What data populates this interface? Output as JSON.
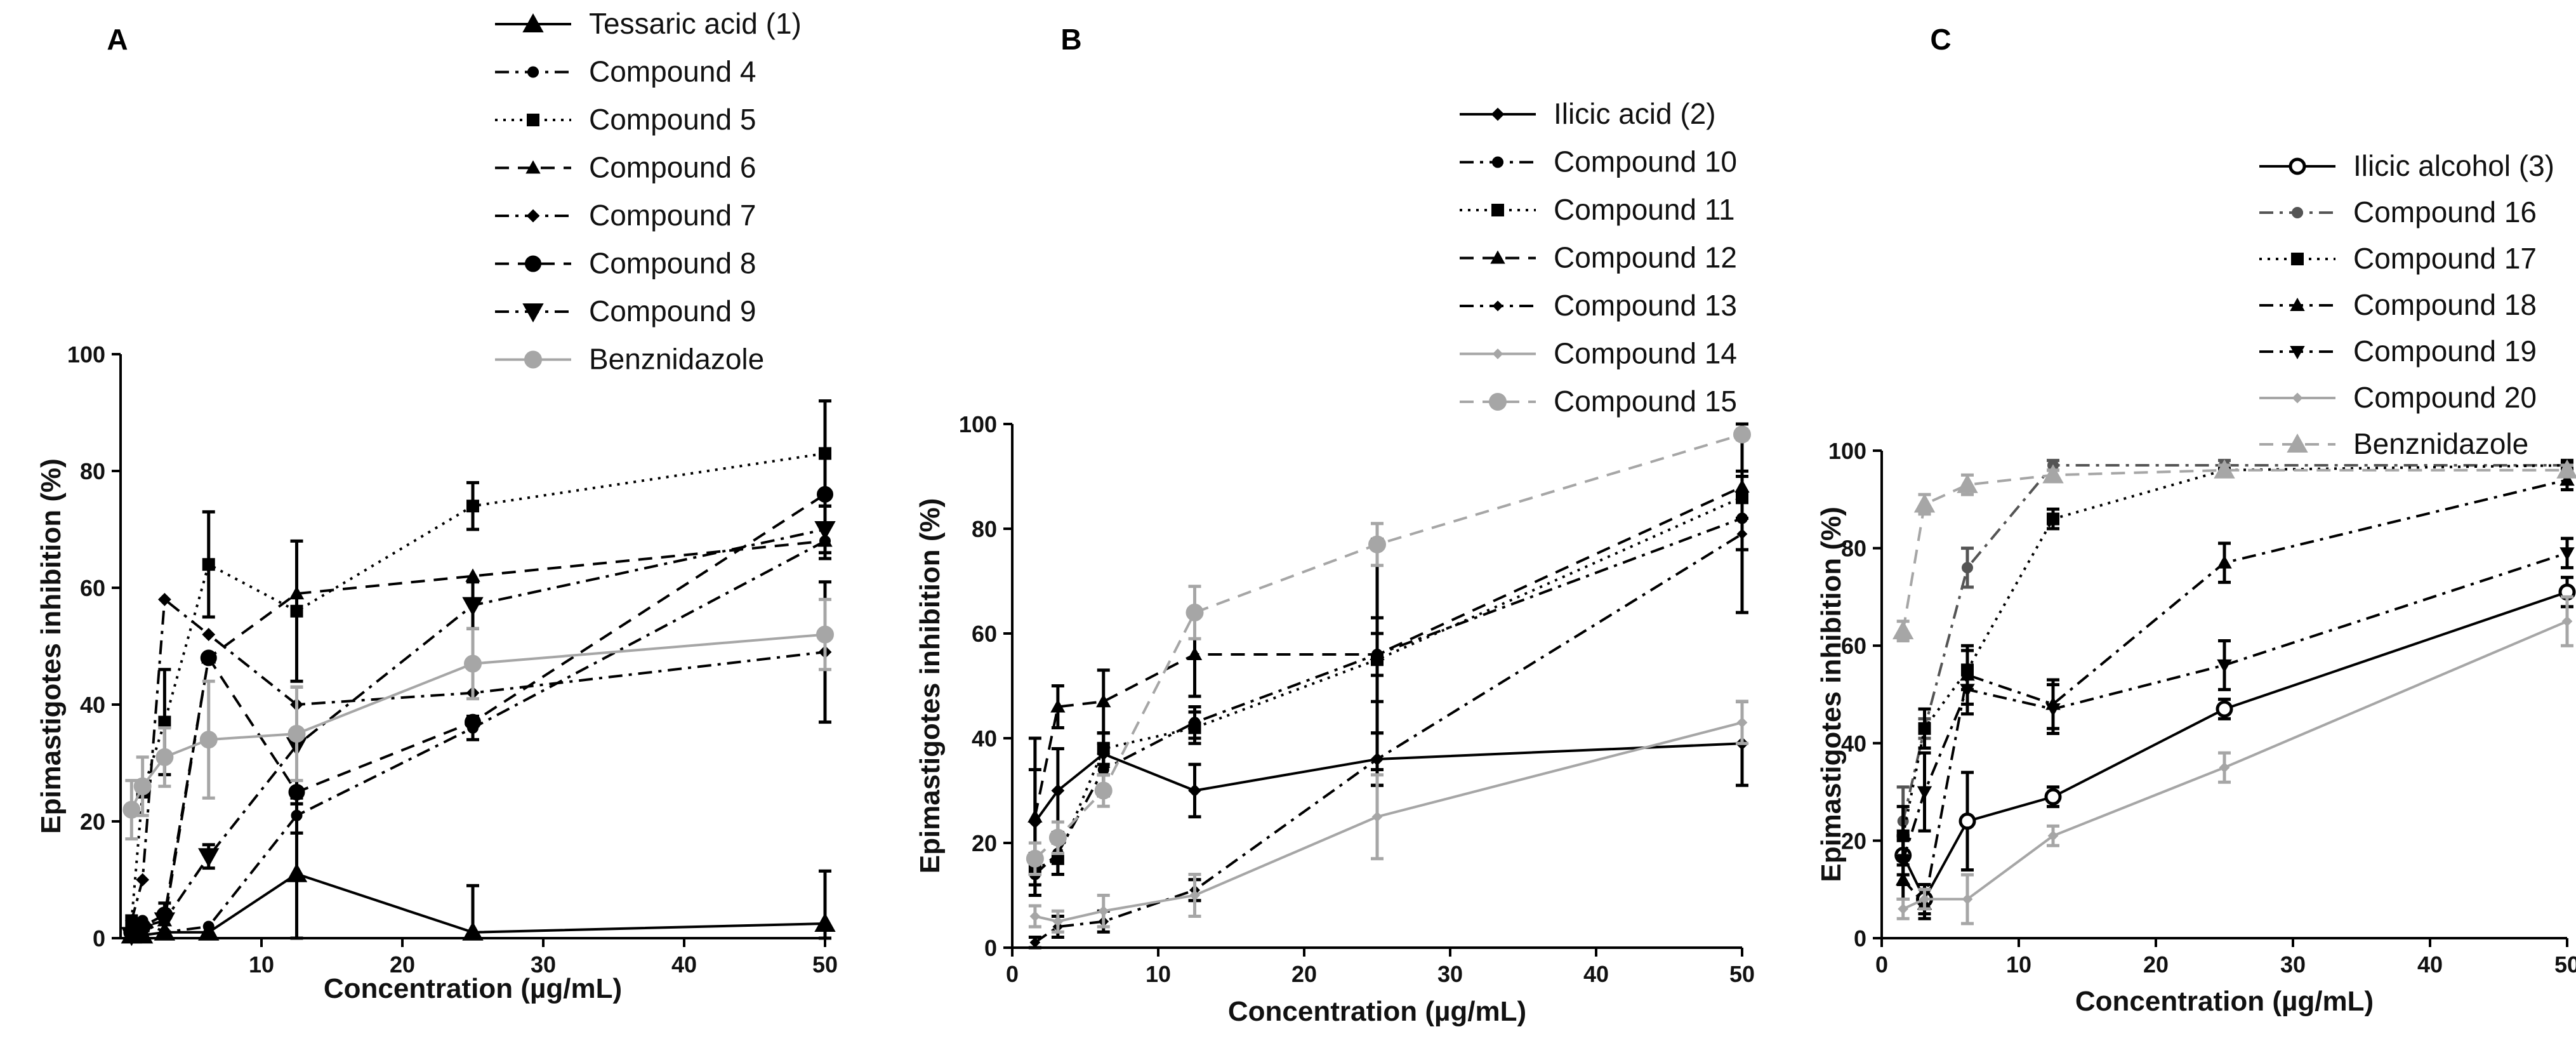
{
  "chart_data": [
    {
      "panel": "A",
      "type": "line",
      "xlabel": "Concentration (µg/mL)",
      "ylabel": "Epimastigotes inhibition (%)",
      "xlim": [
        0,
        50
      ],
      "ylim": [
        0,
        100
      ],
      "xticks": [
        10,
        20,
        30,
        40,
        50
      ],
      "yticks": [
        0,
        20,
        40,
        60,
        80,
        100
      ],
      "legend_position": "top",
      "x": [
        0.78,
        1.56,
        3.125,
        6.25,
        12.5,
        25,
        50
      ],
      "series": [
        {
          "name": "Tessaric acid (1)",
          "marker": "triangle",
          "dash": "solid",
          "color": "#000000",
          "values": [
            0.5,
            0.5,
            1,
            1,
            11,
            1,
            2.5
          ],
          "errors": [
            0,
            0,
            0,
            0,
            12,
            8,
            9
          ]
        },
        {
          "name": "Compound 4",
          "marker": "circle-small",
          "dash": "dash-dot",
          "color": "#000000",
          "values": [
            2,
            3,
            1,
            2,
            21,
            36,
            68
          ],
          "errors": [
            0,
            0,
            0,
            0,
            3,
            2,
            3
          ]
        },
        {
          "name": "Compound 5",
          "marker": "square",
          "dash": "dotted",
          "color": "#000000",
          "values": [
            3,
            25,
            37,
            64,
            56,
            74,
            83
          ],
          "errors": [
            0,
            0,
            9,
            9,
            12,
            4,
            9
          ]
        },
        {
          "name": "Compound 6",
          "marker": "triangle-small",
          "dash": "dashed",
          "color": "#000000",
          "values": [
            1,
            2,
            3,
            48,
            59,
            62,
            68
          ],
          "errors": [
            0,
            0,
            0,
            0,
            0,
            0,
            0
          ]
        },
        {
          "name": "Compound 7",
          "marker": "diamond",
          "dash": "dash-dot",
          "color": "#000000",
          "values": [
            3,
            10,
            58,
            52,
            40,
            42,
            49
          ],
          "errors": [
            0,
            0,
            0,
            0,
            0,
            0,
            12
          ]
        },
        {
          "name": "Compound 8",
          "marker": "circle",
          "dash": "dashed",
          "color": "#000000",
          "values": [
            1,
            2,
            4,
            48,
            25,
            37,
            76
          ],
          "errors": [
            0,
            0,
            0,
            0,
            0,
            0,
            0
          ]
        },
        {
          "name": "Compound 9",
          "marker": "triangle-down",
          "dash": "dash-dot",
          "color": "#000000",
          "values": [
            0.5,
            1,
            3,
            14,
            33,
            57,
            70
          ],
          "errors": [
            0,
            0,
            3,
            2,
            10,
            4,
            4
          ]
        },
        {
          "name": "Benznidazole",
          "marker": "circle-large",
          "dash": "solid",
          "color": "#a6a6a6",
          "values": [
            22,
            26,
            31,
            34,
            35,
            47,
            52
          ],
          "errors": [
            5,
            5,
            5,
            10,
            8,
            6,
            6
          ]
        }
      ]
    },
    {
      "panel": "B",
      "type": "line",
      "xlabel": "Concentration (µg/mL)",
      "ylabel": "Epimastigotes inhibition (%)",
      "xlim": [
        0,
        50
      ],
      "ylim": [
        0,
        100
      ],
      "xticks": [
        0,
        10,
        20,
        30,
        40,
        50
      ],
      "yticks": [
        0,
        20,
        40,
        60,
        80,
        100
      ],
      "legend_position": "top-right",
      "x": [
        1.56,
        3.125,
        6.25,
        12.5,
        25,
        50
      ],
      "series": [
        {
          "name": "Ilicic acid (2)",
          "marker": "diamond",
          "dash": "solid",
          "color": "#000000",
          "values": [
            24,
            30,
            37,
            30,
            36,
            39
          ],
          "errors": [
            10,
            8,
            4,
            5,
            5,
            8
          ]
        },
        {
          "name": "Compound 10",
          "marker": "circle-small",
          "dash": "dash-dot",
          "color": "#000000",
          "values": [
            14,
            18,
            34,
            43,
            56,
            82
          ],
          "errors": [
            4,
            4,
            5,
            3,
            22,
            18
          ]
        },
        {
          "name": "Compound 11",
          "marker": "square",
          "dash": "dotted",
          "color": "#000000",
          "values": [
            15,
            17,
            38,
            42,
            55,
            86
          ],
          "errors": [
            3,
            3,
            3,
            3,
            8,
            4
          ]
        },
        {
          "name": "Compound 12",
          "marker": "triangle-small",
          "dash": "dashed",
          "color": "#000000",
          "values": [
            25,
            46,
            47,
            56,
            56,
            88
          ],
          "errors": [
            15,
            4,
            6,
            8,
            4,
            3
          ]
        },
        {
          "name": "Compound 13",
          "marker": "diamond-small",
          "dash": "dash-dot",
          "color": "#000000",
          "values": [
            1,
            4,
            5,
            11,
            36,
            79
          ],
          "errors": [
            1,
            2,
            2,
            2,
            5,
            3
          ]
        },
        {
          "name": "Compound 14",
          "marker": "diamond-small",
          "dash": "solid",
          "color": "#a6a6a6",
          "values": [
            6,
            5,
            7,
            10,
            25,
            43
          ],
          "errors": [
            2,
            2,
            3,
            4,
            8,
            4
          ]
        },
        {
          "name": "Compound 15",
          "marker": "circle-large",
          "dash": "dashed",
          "color": "#a6a6a6",
          "values": [
            17,
            21,
            30,
            64,
            77,
            98
          ],
          "errors": [
            3,
            3,
            3,
            5,
            4,
            1
          ]
        }
      ]
    },
    {
      "panel": "C",
      "type": "line",
      "xlabel": "Concentration (µg/mL)",
      "ylabel": "Epimastigotes inhibition (%)",
      "xlim": [
        0,
        50
      ],
      "ylim": [
        0,
        100
      ],
      "xticks": [
        0,
        10,
        20,
        30,
        40,
        50
      ],
      "yticks": [
        0,
        20,
        40,
        60,
        80,
        100
      ],
      "legend_position": "top-right",
      "x": [
        1.56,
        3.125,
        6.25,
        12.5,
        25,
        50
      ],
      "series": [
        {
          "name": "Ilicic alcohol (3)",
          "marker": "circle-open",
          "dash": "solid",
          "color": "#000000",
          "values": [
            17,
            8,
            24,
            29,
            47,
            71
          ],
          "errors": [
            4,
            3,
            10,
            2,
            2,
            3
          ]
        },
        {
          "name": "Compound 16",
          "marker": "circle-small",
          "dash": "dash-dot",
          "color": "#555555",
          "values": [
            24,
            43,
            76,
            97,
            97,
            97
          ],
          "errors": [
            7,
            2,
            4,
            1,
            1,
            1
          ]
        },
        {
          "name": "Compound 17",
          "marker": "square",
          "dash": "dotted",
          "color": "#000000",
          "values": [
            21,
            43,
            55,
            86,
            96,
            97
          ],
          "errors": [
            6,
            4,
            4,
            2,
            1,
            1
          ]
        },
        {
          "name": "Compound 18",
          "marker": "triangle-small",
          "dash": "dash-dot",
          "color": "#000000",
          "values": [
            12,
            7,
            54,
            48,
            77,
            94
          ],
          "errors": [
            4,
            3,
            6,
            5,
            4,
            2
          ]
        },
        {
          "name": "Compound 19",
          "marker": "triangle-down-small",
          "dash": "dash-dot",
          "color": "#000000",
          "values": [
            16,
            30,
            51,
            47,
            56,
            79
          ],
          "errors": [
            5,
            8,
            5,
            5,
            5,
            3
          ]
        },
        {
          "name": "Compound 20",
          "marker": "diamond-small",
          "dash": "solid",
          "color": "#a6a6a6",
          "values": [
            6,
            8,
            8,
            21,
            35,
            65
          ],
          "errors": [
            2,
            2,
            5,
            2,
            3,
            5
          ]
        },
        {
          "name": "Benznidazole",
          "marker": "triangle-large",
          "dash": "dashed",
          "color": "#a6a6a6",
          "values": [
            63,
            89,
            93,
            95,
            96,
            96
          ],
          "errors": [
            2,
            2,
            2,
            1,
            1,
            1
          ]
        }
      ]
    }
  ]
}
